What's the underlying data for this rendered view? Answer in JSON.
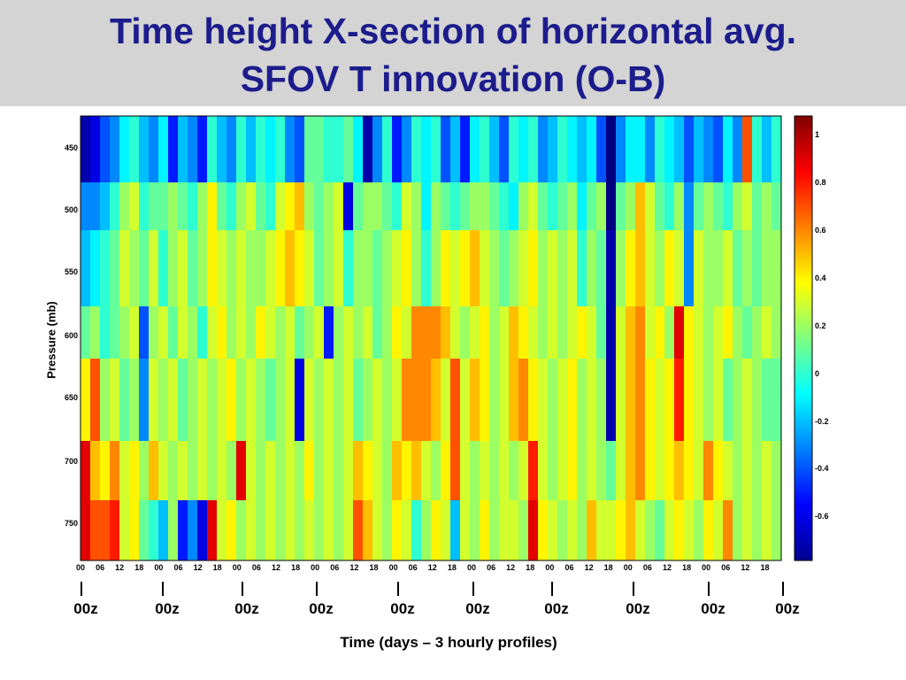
{
  "title": {
    "line1": "Time height X-section of horizontal avg.",
    "line2": "SFOV T innovation (O-B)"
  },
  "chart_data": {
    "type": "heatmap",
    "title": "Time height X-section of horizontal avg. SFOV T innovation (O-B)",
    "ylabel": "Pressure (mb)",
    "xlabel": "Time (days – 3 hourly profiles)",
    "y_tick_labels": [
      "450",
      "500",
      "550",
      "600",
      "650",
      "700",
      "750"
    ],
    "x_tick_labels": [
      "00",
      "06",
      "12",
      "18",
      "00",
      "06",
      "12",
      "18",
      "00",
      "06",
      "12",
      "18",
      "00",
      "06",
      "12",
      "18",
      "00",
      "06",
      "12",
      "18",
      "00",
      "06",
      "12",
      "18",
      "00",
      "06",
      "12",
      "18",
      "00",
      "06",
      "12",
      "18",
      "00",
      "06",
      "12",
      "18"
    ],
    "day_markers": [
      "00z",
      "00z",
      "00z",
      "00z",
      "00z",
      "00z",
      "00z",
      "00z",
      "00z",
      "00z"
    ],
    "colorbar": {
      "ticks": [
        1,
        0.8,
        0.6,
        0.4,
        0.2,
        0,
        -0.2,
        -0.4,
        -0.6
      ],
      "range": [
        -0.78,
        1.08
      ],
      "colormap": "jet"
    },
    "time_steps": 72,
    "pressure_levels": [
      450,
      500,
      550,
      600,
      650,
      700,
      750
    ],
    "values": [
      [
        -0.7,
        -0.6,
        -0.4,
        -0.3,
        -0.1,
        0.0,
        -0.2,
        -0.3,
        -0.1,
        -0.5,
        -0.2,
        -0.3,
        -0.5,
        0.0,
        -0.2,
        -0.3,
        0.0,
        -0.2,
        0.0,
        -0.1,
        0.0,
        -0.3,
        -0.4,
        0.1,
        0.1,
        0.0,
        0.0,
        0.1,
        -0.1,
        -0.7,
        -0.3,
        0.0,
        -0.5,
        -0.3,
        0.0,
        -0.1,
        0.0,
        -0.4,
        -0.2,
        -0.5,
        -0.1,
        0.0,
        -0.2,
        -0.4,
        0.0,
        -0.1,
        0.0,
        -0.3,
        -0.2,
        0.0,
        -0.1,
        -0.2,
        -0.1,
        -0.4,
        -0.8,
        -0.3,
        -0.1,
        -0.1,
        -0.3,
        0.0,
        -0.1,
        -0.2,
        -0.4,
        -0.2,
        -0.3,
        -0.4,
        -0.1,
        -0.3,
        0.7,
        0.0,
        -0.2,
        0.0
      ],
      [
        -0.3,
        -0.3,
        -0.2,
        0.0,
        0.2,
        0.3,
        0.0,
        0.1,
        0.1,
        0.2,
        0.1,
        0.0,
        0.2,
        0.4,
        0.1,
        0.0,
        0.2,
        0.3,
        0.1,
        0.0,
        0.3,
        0.4,
        0.5,
        0.2,
        0.1,
        0.2,
        0.3,
        -0.6,
        0.1,
        0.2,
        0.2,
        0.1,
        0.0,
        0.3,
        0.2,
        -0.1,
        0.2,
        0.1,
        0.0,
        0.1,
        0.2,
        0.2,
        0.1,
        0.0,
        -0.1,
        0.2,
        0.3,
        0.1,
        0.0,
        0.1,
        0.2,
        -0.1,
        0.1,
        0.2,
        -0.8,
        0.1,
        0.2,
        0.5,
        0.3,
        0.1,
        0.0,
        0.2,
        -0.3,
        0.1,
        0.2,
        0.1,
        0.0,
        0.2,
        0.3,
        0.1,
        0.2,
        0.1
      ],
      [
        -0.2,
        -0.1,
        0.0,
        0.1,
        0.3,
        0.2,
        0.1,
        0.3,
        0.0,
        0.2,
        0.3,
        0.1,
        0.2,
        0.4,
        0.3,
        0.2,
        0.3,
        0.2,
        0.2,
        0.3,
        0.4,
        0.5,
        0.4,
        0.3,
        0.1,
        0.2,
        0.3,
        0.0,
        0.2,
        0.2,
        0.1,
        0.2,
        0.3,
        0.4,
        0.2,
        0.0,
        0.2,
        0.4,
        0.3,
        0.4,
        0.5,
        0.3,
        0.2,
        0.1,
        0.2,
        0.3,
        0.4,
        0.2,
        0.3,
        0.2,
        0.3,
        0.0,
        0.2,
        0.1,
        -0.7,
        0.2,
        0.4,
        0.5,
        0.3,
        0.2,
        0.4,
        0.3,
        -0.3,
        0.3,
        0.2,
        0.2,
        0.3,
        0.1,
        0.2,
        0.1,
        0.2,
        0.2
      ],
      [
        0.1,
        0.2,
        0.0,
        0.1,
        0.2,
        0.3,
        -0.4,
        0.2,
        0.3,
        0.1,
        0.3,
        0.2,
        0.0,
        0.3,
        0.4,
        0.2,
        0.3,
        0.2,
        0.4,
        0.3,
        0.2,
        0.3,
        0.1,
        0.2,
        0.3,
        -0.5,
        0.2,
        0.3,
        0.2,
        0.3,
        0.1,
        0.2,
        0.4,
        0.3,
        0.6,
        0.6,
        0.6,
        0.5,
        0.3,
        0.2,
        0.3,
        0.4,
        0.2,
        0.3,
        0.5,
        0.4,
        0.3,
        0.2,
        0.3,
        0.2,
        0.3,
        0.4,
        0.3,
        0.1,
        -0.7,
        0.3,
        0.5,
        0.6,
        0.3,
        0.4,
        0.2,
        0.9,
        0.4,
        0.3,
        0.2,
        0.3,
        0.4,
        0.2,
        0.1,
        0.2,
        0.3,
        0.2
      ],
      [
        0.4,
        0.7,
        0.2,
        0.3,
        0.1,
        0.2,
        -0.3,
        0.3,
        0.2,
        0.3,
        0.1,
        0.2,
        0.3,
        0.2,
        0.3,
        0.4,
        0.2,
        0.3,
        0.2,
        0.1,
        0.2,
        0.3,
        -0.6,
        0.3,
        0.2,
        0.3,
        0.2,
        0.3,
        0.1,
        0.2,
        0.3,
        0.2,
        0.3,
        0.6,
        0.6,
        0.6,
        0.5,
        0.3,
        0.7,
        0.3,
        0.5,
        0.4,
        0.2,
        0.3,
        0.5,
        0.6,
        0.4,
        0.3,
        0.2,
        0.3,
        0.4,
        0.2,
        0.3,
        0.2,
        -0.7,
        0.3,
        0.5,
        0.6,
        0.4,
        0.3,
        0.4,
        0.8,
        0.4,
        0.3,
        0.2,
        0.3,
        0.1,
        0.2,
        0.3,
        0.2,
        0.1,
        0.1
      ],
      [
        0.9,
        0.5,
        0.4,
        0.6,
        0.3,
        0.4,
        0.2,
        0.5,
        0.3,
        0.2,
        0.3,
        0.2,
        0.3,
        0.2,
        0.3,
        0.2,
        0.9,
        0.3,
        0.2,
        0.3,
        0.2,
        0.3,
        0.2,
        0.4,
        0.2,
        0.3,
        0.2,
        0.3,
        0.5,
        0.4,
        0.3,
        0.2,
        0.5,
        0.4,
        0.5,
        0.3,
        0.2,
        0.4,
        0.7,
        0.3,
        0.2,
        0.3,
        0.2,
        0.3,
        0.2,
        0.3,
        0.8,
        0.3,
        0.2,
        0.3,
        0.4,
        0.2,
        0.3,
        0.2,
        0.1,
        0.3,
        0.5,
        0.6,
        0.4,
        0.3,
        0.4,
        0.5,
        0.4,
        0.3,
        0.6,
        0.4,
        0.3,
        0.2,
        0.3,
        0.2,
        0.3,
        0.2
      ],
      [
        0.9,
        0.7,
        0.7,
        0.8,
        0.3,
        0.4,
        0.1,
        0.0,
        -0.2,
        0.2,
        -0.5,
        -0.3,
        -0.6,
        0.9,
        0.3,
        0.4,
        0.2,
        0.3,
        0.2,
        0.3,
        0.2,
        0.3,
        0.2,
        0.3,
        0.2,
        0.3,
        0.2,
        0.3,
        0.7,
        0.5,
        0.3,
        0.2,
        0.4,
        0.3,
        0.0,
        0.2,
        0.4,
        0.3,
        -0.2,
        0.3,
        0.2,
        0.4,
        0.2,
        0.3,
        0.3,
        0.2,
        0.9,
        0.4,
        0.3,
        0.2,
        0.3,
        0.2,
        0.5,
        0.3,
        0.3,
        0.4,
        0.5,
        0.3,
        0.2,
        0.1,
        0.3,
        0.4,
        0.3,
        0.2,
        0.4,
        0.3,
        0.6,
        0.2,
        0.3,
        0.2,
        0.3,
        0.2
      ]
    ]
  }
}
